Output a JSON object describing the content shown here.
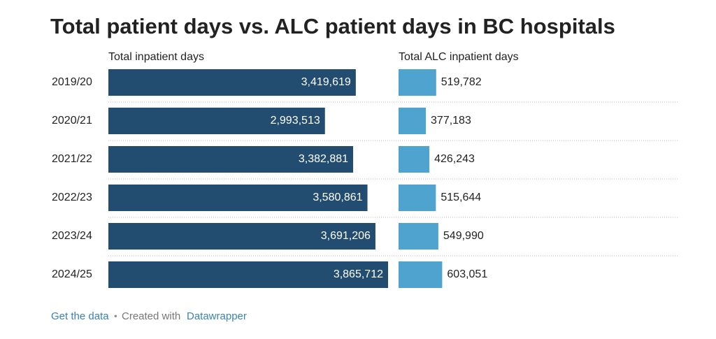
{
  "chart_data": {
    "type": "split-bar",
    "title": "Total patient days vs. ALC patient days in BC hospitals",
    "categories": [
      "2019/20",
      "2020/21",
      "2021/22",
      "2022/23",
      "2023/24",
      "2024/25"
    ],
    "series": [
      {
        "name": "Total inpatient days",
        "color": "#234d70",
        "values": [
          3419619,
          2993513,
          3382881,
          3580861,
          3691206,
          3865712
        ],
        "value_labels": [
          "3,419,619",
          "2,993,513",
          "3,382,881",
          "3,580,861",
          "3,691,206",
          "3,865,712"
        ]
      },
      {
        "name": "Total ALC inpatient days",
        "color": "#4fa3cf",
        "values": [
          519782,
          377183,
          426243,
          515644,
          549990,
          603051
        ],
        "value_labels": [
          "519,782",
          "377,183",
          "426,243",
          "515,644",
          "549,990",
          "603,051"
        ]
      }
    ],
    "footer": {
      "link": "Get the data",
      "separator": "•",
      "text": "Created with",
      "tool": "Datawrapper"
    }
  }
}
